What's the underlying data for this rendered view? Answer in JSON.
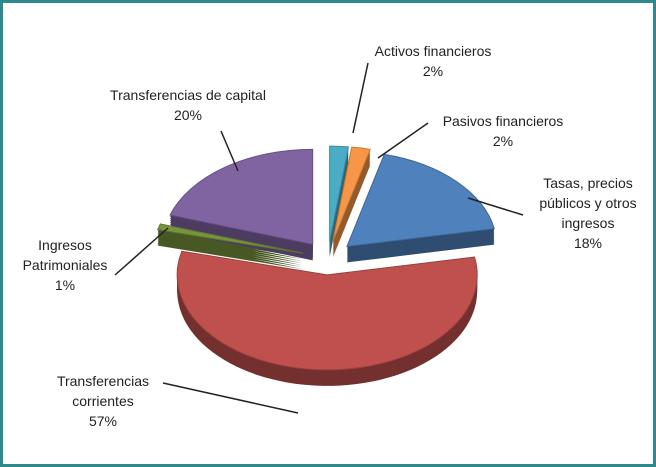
{
  "chart_data": {
    "type": "pie",
    "categories": [
      "Activos financieros",
      "Pasivos financieros",
      "Tasas, precios públicos y otros ingresos",
      "Transferencias corrientes",
      "Ingresos Patrimoniales",
      "Transferencias de capital"
    ],
    "values": [
      2,
      2,
      18,
      57,
      1,
      20
    ],
    "value_labels": [
      "2%",
      "2%",
      "18%",
      "57%",
      "1%",
      "20%"
    ],
    "colors": [
      "#4bacc6",
      "#f79646",
      "#4f81bd",
      "#c0504d",
      "#77933c",
      "#8064a2"
    ]
  }
}
